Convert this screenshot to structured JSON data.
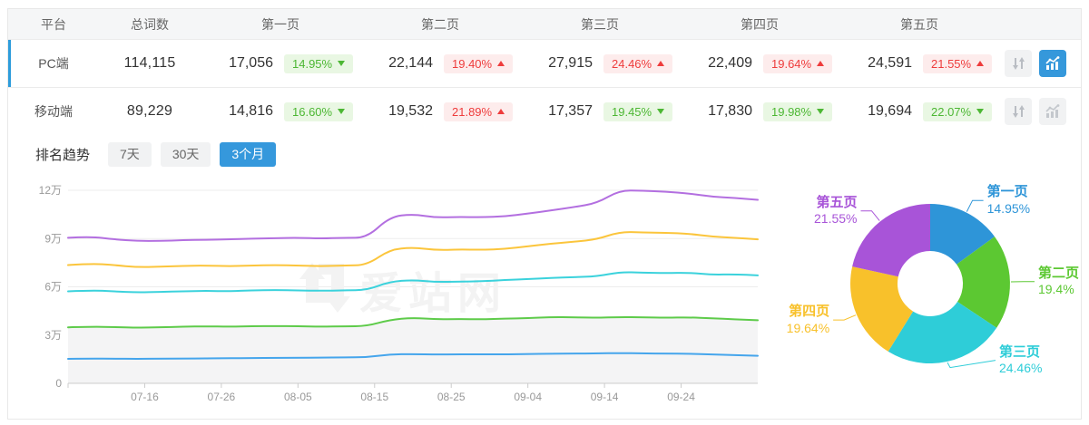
{
  "colors": {
    "accent_blue": "#3598dc",
    "up_red": "#ee3c3c",
    "down_green": "#4cb733",
    "active_row_border": "#2d9cdb",
    "axis_text": "#999999",
    "grid_line": "#ededed",
    "watermark_gray": "#f3f3f3"
  },
  "table": {
    "headers": [
      "平台",
      "总词数",
      "第一页",
      "第二页",
      "第三页",
      "第四页",
      "第五页"
    ],
    "row_icons": [
      "sort-icon",
      "trend-chart-icon"
    ],
    "rows": [
      {
        "platform": "PC端",
        "total": "114,115",
        "active": true,
        "trend_icon_active": true,
        "pages": [
          {
            "value": "17,056",
            "pct": "14.95%",
            "dir": "down"
          },
          {
            "value": "22,144",
            "pct": "19.40%",
            "dir": "up"
          },
          {
            "value": "27,915",
            "pct": "24.46%",
            "dir": "up"
          },
          {
            "value": "22,409",
            "pct": "19.64%",
            "dir": "up"
          },
          {
            "value": "24,591",
            "pct": "21.55%",
            "dir": "up"
          }
        ]
      },
      {
        "platform": "移动端",
        "total": "89,229",
        "active": false,
        "trend_icon_active": false,
        "pages": [
          {
            "value": "14,816",
            "pct": "16.60%",
            "dir": "down"
          },
          {
            "value": "19,532",
            "pct": "21.89%",
            "dir": "up"
          },
          {
            "value": "17,357",
            "pct": "19.45%",
            "dir": "down"
          },
          {
            "value": "17,830",
            "pct": "19.98%",
            "dir": "down"
          },
          {
            "value": "19,694",
            "pct": "22.07%",
            "dir": "down"
          }
        ]
      }
    ]
  },
  "trend": {
    "title": "排名趋势",
    "tabs": [
      {
        "label": "7天",
        "active": false
      },
      {
        "label": "30天",
        "active": false
      },
      {
        "label": "3个月",
        "active": true
      }
    ]
  },
  "watermark": "爱站网",
  "chart_data": [
    {
      "type": "line",
      "title": "排名趋势 3个月",
      "note": "stacked cumulative keyword counts, unit 万 (10k)",
      "stacked_cumulative": true,
      "x": [
        "07-06",
        "07-09",
        "07-12",
        "07-15",
        "07-18",
        "07-21",
        "07-24",
        "07-27",
        "07-30",
        "08-02",
        "08-05",
        "08-08",
        "08-11",
        "08-14",
        "08-17",
        "08-20",
        "08-23",
        "08-26",
        "08-29",
        "09-01",
        "09-04",
        "09-07",
        "09-10",
        "09-13",
        "09-16",
        "09-19",
        "09-22",
        "09-25",
        "09-28",
        "10-01",
        "10-04"
      ],
      "series": [
        {
          "name": "第一页",
          "color": "#45a5ec",
          "values_wan": [
            1.52,
            1.54,
            1.53,
            1.52,
            1.53,
            1.54,
            1.55,
            1.56,
            1.57,
            1.58,
            1.59,
            1.6,
            1.61,
            1.62,
            1.8,
            1.82,
            1.79,
            1.8,
            1.81,
            1.8,
            1.82,
            1.84,
            1.85,
            1.86,
            1.88,
            1.86,
            1.85,
            1.84,
            1.79,
            1.76,
            1.71
          ]
        },
        {
          "name": "第二页",
          "color": "#5ecb4a",
          "area_fill": "#f4f4f5",
          "values_wan": [
            3.48,
            3.52,
            3.5,
            3.46,
            3.48,
            3.52,
            3.54,
            3.52,
            3.55,
            3.56,
            3.55,
            3.52,
            3.54,
            3.56,
            3.95,
            4.08,
            3.98,
            4.0,
            3.98,
            4.02,
            4.05,
            4.12,
            4.1,
            4.08,
            4.12,
            4.1,
            4.08,
            4.1,
            4.05,
            3.98,
            3.92
          ]
        },
        {
          "name": "第三页",
          "color": "#3bd2dc",
          "values_wan": [
            5.72,
            5.78,
            5.72,
            5.65,
            5.68,
            5.72,
            5.75,
            5.72,
            5.78,
            5.8,
            5.78,
            5.75,
            5.78,
            5.8,
            6.32,
            6.42,
            6.3,
            6.32,
            6.35,
            6.42,
            6.48,
            6.55,
            6.6,
            6.65,
            6.92,
            6.88,
            6.85,
            6.88,
            6.75,
            6.78,
            6.71
          ]
        },
        {
          "name": "第四页",
          "color": "#fbc53c",
          "values_wan": [
            7.35,
            7.45,
            7.35,
            7.22,
            7.25,
            7.3,
            7.32,
            7.28,
            7.32,
            7.35,
            7.32,
            7.28,
            7.32,
            7.35,
            8.32,
            8.45,
            8.28,
            8.32,
            8.3,
            8.35,
            8.52,
            8.68,
            8.8,
            8.95,
            9.42,
            9.38,
            9.36,
            9.3,
            9.12,
            9.05,
            8.95
          ]
        },
        {
          "name": "第五页",
          "color": "#b36fe0",
          "values_wan": [
            9.05,
            9.12,
            8.95,
            8.85,
            8.85,
            8.9,
            8.92,
            8.95,
            9.0,
            9.02,
            9.05,
            9.0,
            9.05,
            9.05,
            10.35,
            10.52,
            10.3,
            10.35,
            10.32,
            10.38,
            10.55,
            10.75,
            10.95,
            11.2,
            12.0,
            11.97,
            11.92,
            11.8,
            11.6,
            11.52,
            11.41
          ]
        }
      ],
      "y_ticks": [
        "0",
        "3万",
        "6万",
        "9万",
        "12万"
      ],
      "y_tick_values_wan": [
        0,
        3,
        6,
        9,
        12
      ],
      "ylim_wan": [
        0,
        12
      ],
      "x_axis_labels": [
        "07-16",
        "07-26",
        "08-05",
        "08-15",
        "08-25",
        "09-04",
        "09-14",
        "09-24"
      ],
      "x_axis_label_days": [
        10,
        20,
        30,
        40,
        50,
        60,
        70,
        80
      ],
      "x_total_days": 90,
      "grid": true,
      "legend_position": "none"
    },
    {
      "type": "pie",
      "subtype": "donut",
      "start_at_top": true,
      "clockwise": true,
      "slices": [
        {
          "label": "第一页",
          "pct_label": "14.95%",
          "value": 14.95,
          "color": "#2e95d8"
        },
        {
          "label": "第二页",
          "pct_label": "19.4%",
          "value": 19.4,
          "color": "#5cc832"
        },
        {
          "label": "第三页",
          "pct_label": "24.46%",
          "value": 24.46,
          "color": "#2ecdd8"
        },
        {
          "label": "第四页",
          "pct_label": "19.64%",
          "value": 19.64,
          "color": "#f8c12b"
        },
        {
          "label": "第五页",
          "pct_label": "21.55%",
          "value": 21.55,
          "color": "#a854d8"
        }
      ]
    }
  ]
}
